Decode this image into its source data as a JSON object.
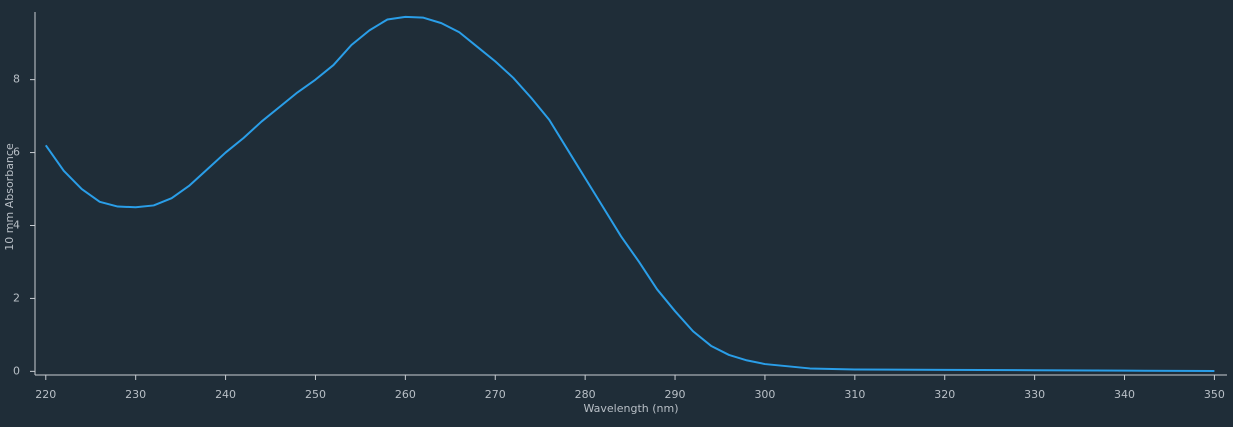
{
  "chart_data": {
    "type": "line",
    "xlabel": "Wavelength (nm)",
    "ylabel": "10 mm Absorbance",
    "x": [
      220,
      222,
      224,
      226,
      228,
      230,
      232,
      234,
      236,
      238,
      240,
      242,
      244,
      246,
      248,
      250,
      252,
      254,
      256,
      258,
      260,
      262,
      264,
      266,
      268,
      270,
      272,
      274,
      276,
      278,
      280,
      282,
      284,
      286,
      288,
      290,
      292,
      294,
      296,
      298,
      300,
      305,
      310,
      320,
      330,
      340,
      350
    ],
    "values": [
      6.2,
      5.5,
      5.0,
      4.65,
      4.52,
      4.5,
      4.55,
      4.75,
      5.1,
      5.55,
      6.0,
      6.4,
      6.85,
      7.25,
      7.65,
      8.0,
      8.4,
      8.95,
      9.35,
      9.65,
      9.72,
      9.7,
      9.55,
      9.3,
      8.9,
      8.5,
      8.05,
      7.5,
      6.9,
      6.1,
      5.3,
      4.5,
      3.7,
      3.0,
      2.25,
      1.65,
      1.1,
      0.7,
      0.45,
      0.3,
      0.2,
      0.08,
      0.05,
      0.04,
      0.03,
      0.02,
      0.01
    ],
    "color": "#2a9ee8",
    "xlim": [
      218.8,
      351.4
    ],
    "xticks": [
      220,
      230,
      240,
      250,
      260,
      270,
      280,
      290,
      300,
      310,
      320,
      330,
      340,
      350
    ],
    "ylim": [
      -0.1,
      9.8
    ],
    "yticks": [
      0,
      2,
      4,
      6,
      8
    ]
  }
}
